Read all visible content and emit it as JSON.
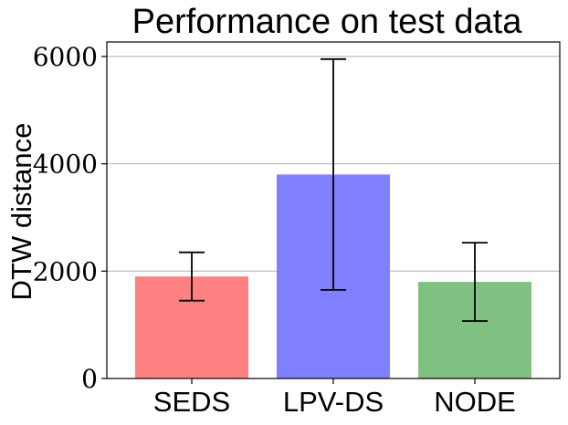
{
  "chart_data": {
    "type": "bar",
    "title": "Performance on test data",
    "xlabel": "",
    "ylabel": "DTW distance",
    "categories": [
      "SEDS",
      "LPV-DS",
      "NODE"
    ],
    "values": [
      1900,
      3800,
      1800
    ],
    "errors": [
      450,
      2150,
      730
    ],
    "colors": [
      "#ff8080",
      "#8080ff",
      "#80c080"
    ],
    "ylim": [
      0,
      6270
    ],
    "yticks": [
      0,
      2000,
      4000,
      6000
    ],
    "ytick_labels": [
      "0",
      "2000",
      "4000",
      "6000"
    ],
    "grid": "y"
  }
}
